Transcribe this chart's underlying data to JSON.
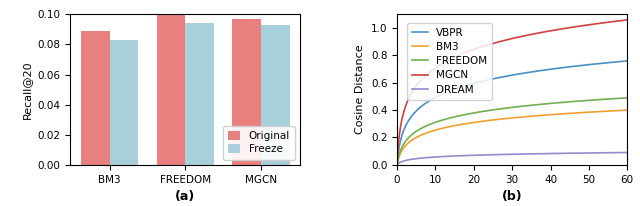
{
  "bar_categories": [
    "BM3",
    "FREEDOM",
    "MGCN"
  ],
  "bar_original": [
    0.089,
    0.1,
    0.097
  ],
  "bar_freeze": [
    0.083,
    0.094,
    0.093
  ],
  "bar_color_original": "#E88080",
  "bar_color_freeze": "#A8D0DC",
  "bar_ylabel": "Recall@20",
  "bar_xlabel": "(a)",
  "bar_ylim": [
    0,
    0.1
  ],
  "bar_yticks": [
    0.0,
    0.02,
    0.04,
    0.06,
    0.08,
    0.1
  ],
  "line_xlabel": "(b)",
  "line_ylabel": "Cosine Distance",
  "line_xlim": [
    0,
    60
  ],
  "line_ylim": [
    0,
    1.1
  ],
  "line_yticks": [
    0.0,
    0.2,
    0.4,
    0.6,
    0.8,
    1.0
  ],
  "line_xticks": [
    0,
    10,
    20,
    30,
    40,
    50,
    60
  ],
  "curves": {
    "VBPR": {
      "color": "#4C90C0",
      "a": 0.76,
      "k": 2.5,
      "p": 0.38
    },
    "BM3": {
      "color": "#F0A030",
      "a": 0.4,
      "k": 2.0,
      "p": 0.38
    },
    "FREEDOM": {
      "color": "#70B050",
      "a": 0.49,
      "k": 2.0,
      "p": 0.38
    },
    "MGCN": {
      "color": "#D04040",
      "a": 1.06,
      "k": 3.5,
      "p": 0.32
    },
    "DREAM": {
      "color": "#9988CC",
      "a": 0.09,
      "k": 2.0,
      "p": 0.38
    }
  },
  "legend_labels": [
    "VBPR",
    "BM3",
    "FREEDOM",
    "MGCN",
    "DREAM"
  ]
}
